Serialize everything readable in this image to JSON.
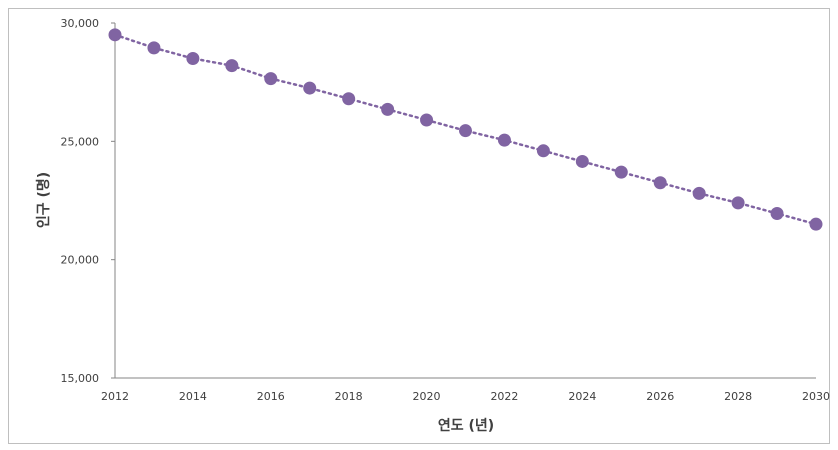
{
  "chart_data": {
    "type": "line",
    "title": "",
    "xlabel": "연도 (년)",
    "ylabel": "인구 (명)",
    "xlim": [
      2012,
      2030
    ],
    "ylim": [
      15000,
      30000
    ],
    "x_ticks": [
      "2012",
      "2014",
      "2016",
      "2018",
      "2020",
      "2022",
      "2024",
      "2026",
      "2028",
      "2030"
    ],
    "y_ticks": [
      "15,000",
      "20,000",
      "25,000",
      "30,000"
    ],
    "grid": false,
    "legend": "none",
    "line_style": "dotted",
    "color": "#8064a2",
    "series": [
      {
        "x": [
          2012,
          2013,
          2014,
          2015,
          2016,
          2017,
          2018,
          2019,
          2020,
          2021,
          2022,
          2023,
          2024,
          2025,
          2026,
          2027,
          2028,
          2029,
          2030
        ],
        "values": [
          29500,
          28950,
          28500,
          28200,
          27650,
          27250,
          26800,
          26350,
          25900,
          25450,
          25050,
          24600,
          24150,
          23700,
          23250,
          22800,
          22400,
          21950,
          21500
        ]
      }
    ]
  }
}
